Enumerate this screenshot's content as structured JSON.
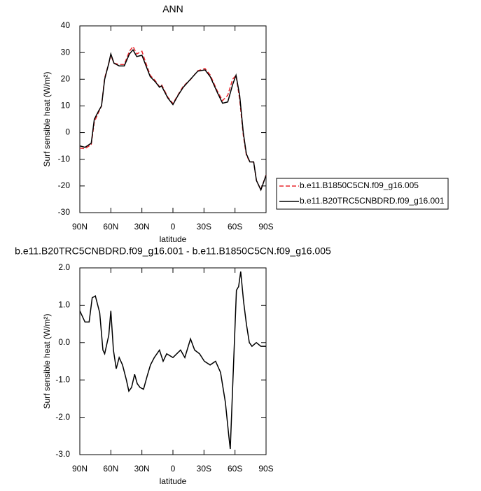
{
  "chart_data": [
    {
      "type": "line",
      "title": "ANN",
      "xlabel": "latitude",
      "ylabel": "Surf sensible heat (W/m²)",
      "x": [
        90,
        85,
        79,
        76,
        72,
        69,
        66,
        62,
        60,
        57,
        52,
        47,
        42,
        38.6,
        35,
        30,
        27,
        22,
        17,
        13,
        11,
        5,
        0,
        -5,
        -10,
        -17,
        -24,
        -31,
        -36,
        -43,
        -48,
        -53,
        -57.7,
        -61,
        -64.5,
        -68,
        -71,
        -74.4,
        -78,
        -80.7,
        -85,
        -90
      ],
      "series": [
        {
          "name": "b.e11.B1850C5CN.f09_g16.005",
          "color": "#e8282e",
          "style": "dashed",
          "values": [
            -5.8,
            -6,
            -4.5,
            4,
            7.5,
            10,
            20.5,
            26,
            29,
            26,
            25.5,
            25.5,
            30.5,
            32.3,
            29.5,
            30.5,
            27,
            21.5,
            19.4,
            17.2,
            18,
            13.3,
            10.9,
            14.2,
            17.4,
            19.9,
            23.2,
            24,
            21.6,
            15.5,
            12,
            14,
            20,
            21.5,
            12.5,
            -1,
            -8.5,
            -11,
            -11,
            -18,
            -21.4,
            -15.9
          ]
        },
        {
          "name": "b.e11.B20TRC5CNBDRD.f09_g16.001",
          "color": "#000000",
          "style": "solid",
          "values": [
            -5,
            -5.5,
            -4,
            5,
            8,
            10,
            20,
            26,
            29.5,
            26,
            25,
            25,
            29.5,
            31,
            28.5,
            29,
            26,
            21,
            19,
            17,
            17.5,
            13,
            10.5,
            14,
            17,
            20,
            23,
            23.5,
            21,
            15,
            11,
            11.5,
            18,
            21.5,
            14,
            0,
            -8,
            -11,
            -11,
            -18,
            -21.5,
            -16
          ]
        }
      ],
      "xlim": [
        90,
        -90
      ],
      "ylim": [
        -30,
        40
      ],
      "xticks": [
        {
          "value": 90,
          "label": "90N"
        },
        {
          "value": 60,
          "label": "60N"
        },
        {
          "value": 30,
          "label": "30N"
        },
        0,
        {
          "value": -30,
          "label": "30S"
        },
        {
          "value": -60,
          "label": "60S"
        },
        {
          "value": -90,
          "label": "90S"
        }
      ],
      "yticks": [
        -30,
        -20,
        -10,
        0,
        10,
        20,
        30,
        40
      ],
      "legend": "right"
    },
    {
      "type": "line",
      "title": "b.e11.B20TRC5CNBDRD.f09_g16.001 - b.e11.B1850C5CN.f09_g16.005",
      "xlabel": "latitude",
      "ylabel": "Surf sensible heat (W/m²)",
      "x": [
        90,
        85,
        81,
        78,
        75,
        70.8,
        67.7,
        66,
        62,
        60,
        57.5,
        54.8,
        52,
        48.7,
        45,
        42.6,
        40,
        37,
        34.5,
        31.8,
        28.4,
        25,
        21.7,
        18,
        13,
        9.5,
        6,
        0,
        -7.4,
        -11.5,
        -17,
        -21,
        -25.7,
        -30.4,
        -35.9,
        -41.2,
        -46,
        -50.7,
        -54,
        -55.4,
        -58,
        -61.4,
        -63.5,
        -65.5,
        -68.3,
        -71,
        -73.8,
        -76.4,
        -80.6,
        -85,
        -90
      ],
      "series": [
        {
          "color": "#000000",
          "style": "solid",
          "values": [
            0.85,
            0.55,
            0.55,
            1.2,
            1.25,
            0.8,
            -0.2,
            -0.3,
            0.2,
            0.85,
            -0.2,
            -0.7,
            -0.4,
            -0.6,
            -1.0,
            -1.3,
            -1.2,
            -0.85,
            -1.1,
            -1.2,
            -1.25,
            -0.9,
            -0.6,
            -0.4,
            -0.2,
            -0.5,
            -0.3,
            -0.4,
            -0.2,
            -0.4,
            0.1,
            -0.2,
            -0.3,
            -0.5,
            -0.6,
            -0.5,
            -0.8,
            -1.6,
            -2.5,
            -2.85,
            -1.0,
            1.4,
            1.5,
            1.9,
            1.1,
            0.5,
            0.0,
            -0.1,
            0.0,
            -0.1,
            -0.1
          ]
        }
      ],
      "xlim": [
        90,
        -90
      ],
      "ylim": [
        -3,
        2
      ],
      "xticks": [
        {
          "value": 90,
          "label": "90N"
        },
        {
          "value": 60,
          "label": "60N"
        },
        {
          "value": 30,
          "label": "30N"
        },
        0,
        {
          "value": -30,
          "label": "30S"
        },
        {
          "value": -60,
          "label": "60S"
        },
        {
          "value": -90,
          "label": "90S"
        }
      ],
      "yticks": [
        {
          "value": -3,
          "label": "-3.0"
        },
        {
          "value": -2,
          "label": "-2.0"
        },
        {
          "value": -1,
          "label": "-1.0"
        },
        {
          "value": 0,
          "label": "0.0"
        },
        {
          "value": 1,
          "label": "1.0"
        },
        {
          "value": 2,
          "label": "2.0"
        }
      ]
    }
  ]
}
